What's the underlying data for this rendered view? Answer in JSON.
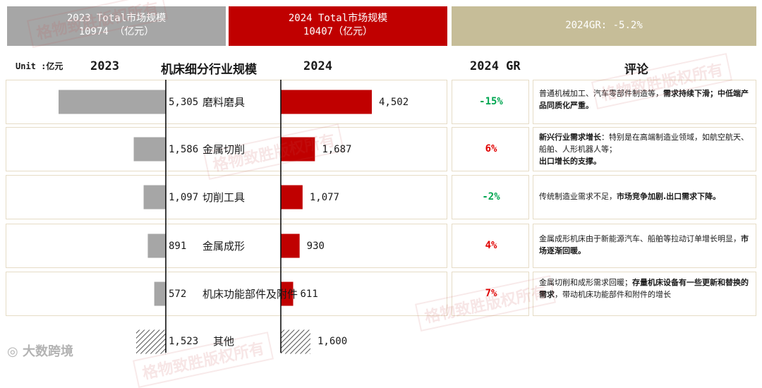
{
  "header": {
    "box2023": {
      "line1": "2023 Total市场规模",
      "line2": "10974 （亿元）"
    },
    "box2024": {
      "line1": "2024 Total市场规模",
      "line2": "10407（亿元）"
    },
    "growth": "2024GR: -5.2%"
  },
  "unit_label": "Unit :亿元",
  "column_heads": {
    "y2023": "2023",
    "segment": "机床细分行业规模",
    "y2024": "2024",
    "gr": "2024 GR",
    "comment": "评论"
  },
  "chart_data": {
    "type": "bar",
    "title": "机床细分行业规模",
    "unit": "亿元",
    "categories": [
      "磨料磨具",
      "金属切削",
      "切削工具",
      "金属成形",
      "机床功能部件及附件",
      "其他"
    ],
    "series": [
      {
        "name": "2023",
        "values": [
          5305,
          1586,
          1097,
          891,
          572,
          1523
        ],
        "labels": [
          "5,305",
          "1,586",
          "1,097",
          "891",
          "572",
          "1,523"
        ]
      },
      {
        "name": "2024",
        "values": [
          4502,
          1687,
          1077,
          930,
          611,
          1600
        ],
        "labels": [
          "4,502",
          "1,687",
          "1,077",
          "930",
          "611",
          "1,600"
        ]
      }
    ],
    "growth": [
      "-15%",
      "6%",
      "-2%",
      "4%",
      "7%",
      ""
    ],
    "xlim": [
      0,
      5305
    ]
  },
  "comments": [
    {
      "plain": "普通机械加工、汽车零部件制造等，",
      "bold": "需求持续下滑；中低端产品同质化严重。",
      "tail": ""
    },
    {
      "plain": "",
      "bold": "新兴行业需求增长",
      "tail": "：特别是在高端制造业领域，如航空航天、船舶、人形机器人等；",
      "bold2": "出口增长的支撑。"
    },
    {
      "plain": "传统制造业需求不足，",
      "bold": "市场竞争加剧.出口需求下降。",
      "tail": ""
    },
    {
      "plain": "金属成形机床由于新能源汽车、船舶等拉动订单增长明显，",
      "bold": "市场逐渐回暖。",
      "tail": ""
    },
    {
      "plain": "金属切削和成形需求回暖；",
      "bold": "存量机床设备有一些更新和替换的需求",
      "tail": "，带动机床功能部件和附件的增长"
    }
  ],
  "colors": {
    "gray": "#a6a6a6",
    "red": "#c00000",
    "tan": "#c6bd98",
    "green": "#00a651"
  },
  "watermark": "格物致胜版权所有",
  "logo": "大数跨境"
}
